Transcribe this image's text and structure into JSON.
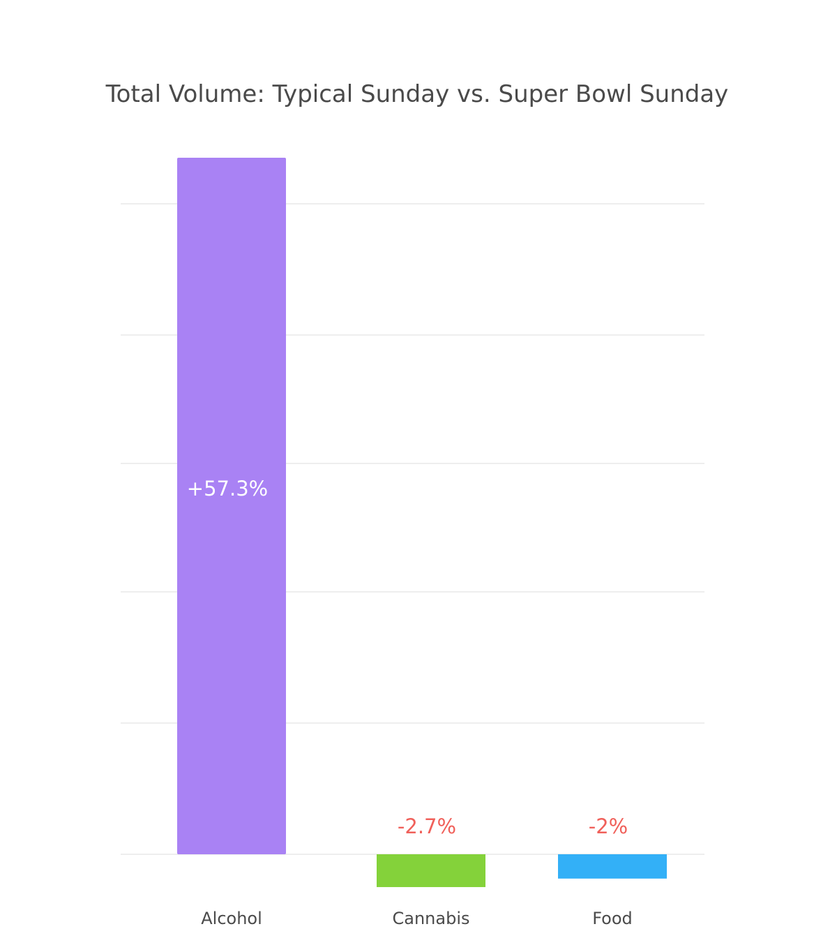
{
  "chart_data": {
    "type": "bar",
    "title": "Total Volume: Typical Sunday vs. Super Bowl Sunday",
    "xlabel": "",
    "ylabel": "",
    "categories": [
      "Alcohol",
      "Cannabis",
      "Food"
    ],
    "values": [
      57.3,
      -2.7,
      -2
    ],
    "value_labels": [
      "+57.3%",
      "-2.7%",
      "-2%"
    ],
    "colors": [
      "#a982f4",
      "#84d23a",
      "#33b0f7"
    ],
    "value_label_colors": [
      "#ffffff",
      "#f0605a",
      "#f0605a"
    ],
    "ylim": [
      -3,
      60
    ],
    "grid": true,
    "legend": "none"
  }
}
